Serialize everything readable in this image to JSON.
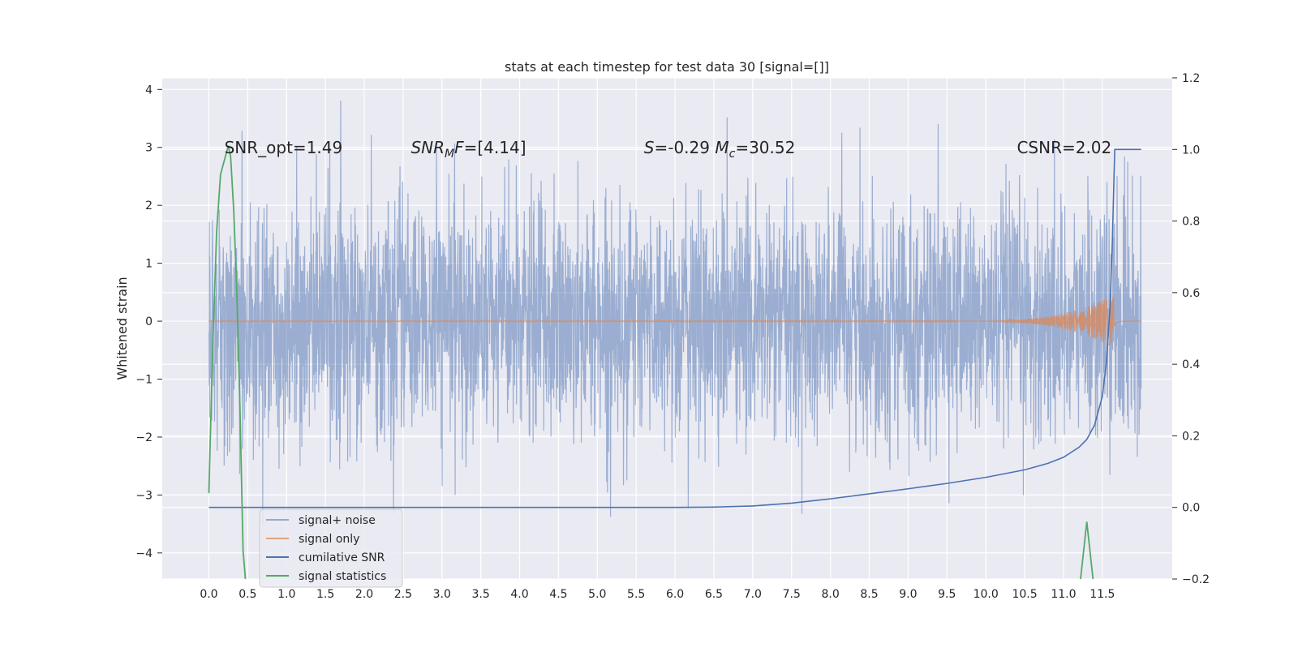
{
  "chart_data": {
    "type": "line",
    "title": "stats at each timestep for test data 30 [signal=[]]",
    "xlabel": "",
    "ylabel": "Whitened strain",
    "ylabel_right": "",
    "xlim": [
      -0.6,
      12.4
    ],
    "ylim": [
      -4.45,
      4.2
    ],
    "ylim_right": [
      -0.2,
      1.2
    ],
    "x_ticks": [
      "0.0",
      "0.5",
      "1.0",
      "1.5",
      "2.0",
      "2.5",
      "3.0",
      "3.5",
      "4.0",
      "4.5",
      "5.0",
      "5.5",
      "6.0",
      "6.5",
      "7.0",
      "7.5",
      "8.0",
      "8.5",
      "9.0",
      "9.5",
      "10.0",
      "10.5",
      "11.0",
      "11.5"
    ],
    "y_ticks_left": [
      "4",
      "3",
      "2",
      "1",
      "0",
      "−1",
      "−2",
      "−3",
      "−4"
    ],
    "y_ticks_right": [
      "1.2",
      "1.0",
      "0.8",
      "0.6",
      "0.4",
      "0.2",
      "0.0",
      "−0.2"
    ],
    "grid": true,
    "legend_position": "lower-left",
    "annotations": [
      {
        "text": "SNR_opt=1.49",
        "x": 0.2,
        "y": 2.9
      },
      {
        "html": "<tspan font-style=\"italic\">SNR</tspan><tspan font-style=\"italic\" font-size=\"14\" dy=\"5\">M</tspan><tspan font-style=\"italic\" dy=\"-5\">F</tspan>=[4.14]",
        "text": "SNR_MF=[4.14]",
        "x": 2.6,
        "y": 2.9
      },
      {
        "html": "<tspan font-style=\"italic\">S</tspan>=-0.29  <tspan font-style=\"italic\">M</tspan><tspan font-style=\"italic\" font-size=\"14\" dy=\"5\">c</tspan><tspan dy=\"-5\">=30.52</tspan>",
        "text": "S=-0.29  M_c=30.52",
        "x": 5.6,
        "y": 2.9
      },
      {
        "text": "CSNR=2.02",
        "x": 10.4,
        "y": 2.9
      }
    ],
    "series": [
      {
        "name": "signal+ noise",
        "color": "#4c72b0",
        "alpha": 0.5,
        "axis": "left",
        "x_range": [
          0,
          12.0
        ],
        "amplitude_std": 1.0
      },
      {
        "name": "signal only",
        "color": "#dd8452",
        "alpha": 0.7,
        "axis": "left",
        "x_range": [
          0,
          12.0
        ],
        "chirp_peak_time": 11.65,
        "chirp_peak_amplitude": 0.45
      },
      {
        "name": "cumilative SNR",
        "color": "#4c72b0",
        "alpha": 1.0,
        "axis": "right",
        "x": [
          0,
          0.5,
          1,
          2,
          3,
          4,
          5,
          6,
          6.5,
          7,
          7.5,
          8,
          8.5,
          9,
          9.5,
          10,
          10.5,
          10.8,
          11,
          11.2,
          11.3,
          11.4,
          11.5,
          11.55,
          11.6,
          11.63,
          11.65,
          11.66,
          11.7,
          11.8,
          11.9,
          12.0
        ],
        "y": [
          0,
          0,
          0,
          0,
          0,
          0,
          0,
          0,
          0.001,
          0.004,
          0.012,
          0.024,
          0.038,
          0.052,
          0.067,
          0.084,
          0.105,
          0.123,
          0.14,
          0.168,
          0.19,
          0.23,
          0.31,
          0.4,
          0.56,
          0.75,
          0.92,
          1.0,
          1.0,
          1.0,
          1.0,
          1.0
        ]
      },
      {
        "name": "signal statistics",
        "color": "#55a868",
        "alpha": 1.0,
        "axis": "right",
        "segments": [
          {
            "x": [
              0,
              0.05,
              0.1,
              0.15,
              0.2,
              0.25,
              0.28,
              0.32,
              0.36,
              0.4,
              0.44,
              0.47
            ],
            "y": [
              0.04,
              0.45,
              0.77,
              0.93,
              0.97,
              1.01,
              0.98,
              0.83,
              0.6,
              0.28,
              -0.12,
              -0.2
            ]
          },
          {
            "x": [
              11.22,
              11.26,
              11.3,
              11.34,
              11.38
            ],
            "y": [
              -0.2,
              -0.12,
              -0.04,
              -0.12,
              -0.2
            ]
          }
        ]
      }
    ]
  }
}
